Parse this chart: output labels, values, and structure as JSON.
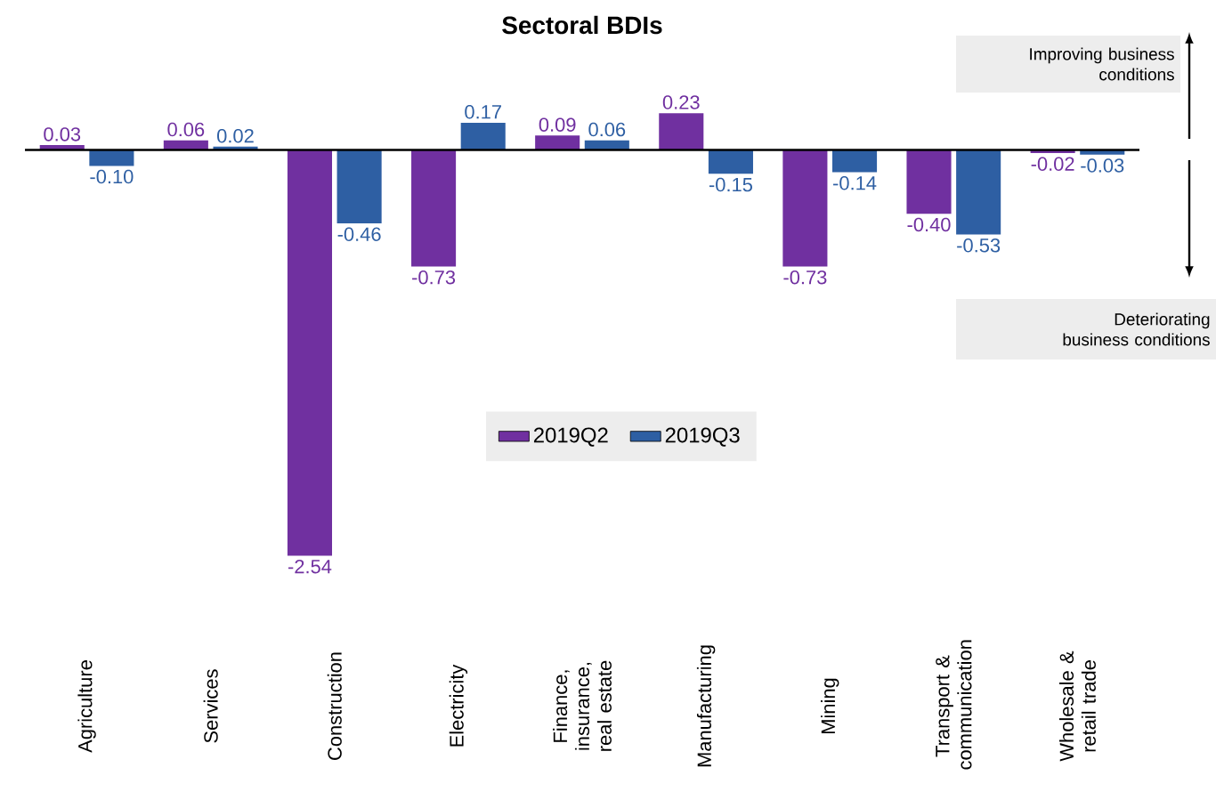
{
  "chart_data": {
    "type": "bar",
    "title": "Sectoral BDIs",
    "categories": [
      "Agriculture",
      "Services",
      "Construction",
      "Electricity",
      "Finance, insurance, real estate",
      "Manufacturing",
      "Mining",
      "Transport & communication",
      "Wholesale & retail trade"
    ],
    "series": [
      {
        "name": "2019Q2",
        "color": "#7030a0",
        "values": [
          0.03,
          0.06,
          -2.54,
          -0.73,
          0.09,
          0.23,
          -0.73,
          -0.4,
          -0.02
        ],
        "value_labels": [
          "0.03",
          "0.06",
          "-2.54",
          "-0.73",
          "0.09",
          "0.23",
          "-0.73",
          "-0.40",
          "-0.02"
        ]
      },
      {
        "name": "2019Q3",
        "color": "#2e5fa3",
        "values": [
          -0.1,
          0.02,
          -0.46,
          0.17,
          0.06,
          -0.15,
          -0.14,
          -0.53,
          -0.03
        ],
        "value_labels": [
          "-0.10",
          "0.02",
          "-0.46",
          "0.17",
          "0.06",
          "-0.15",
          "-0.14",
          "-0.53",
          "-0.03"
        ]
      }
    ],
    "annotations": [
      "Improving business conditions",
      "Deteriorating business conditions"
    ],
    "legend": "center"
  }
}
